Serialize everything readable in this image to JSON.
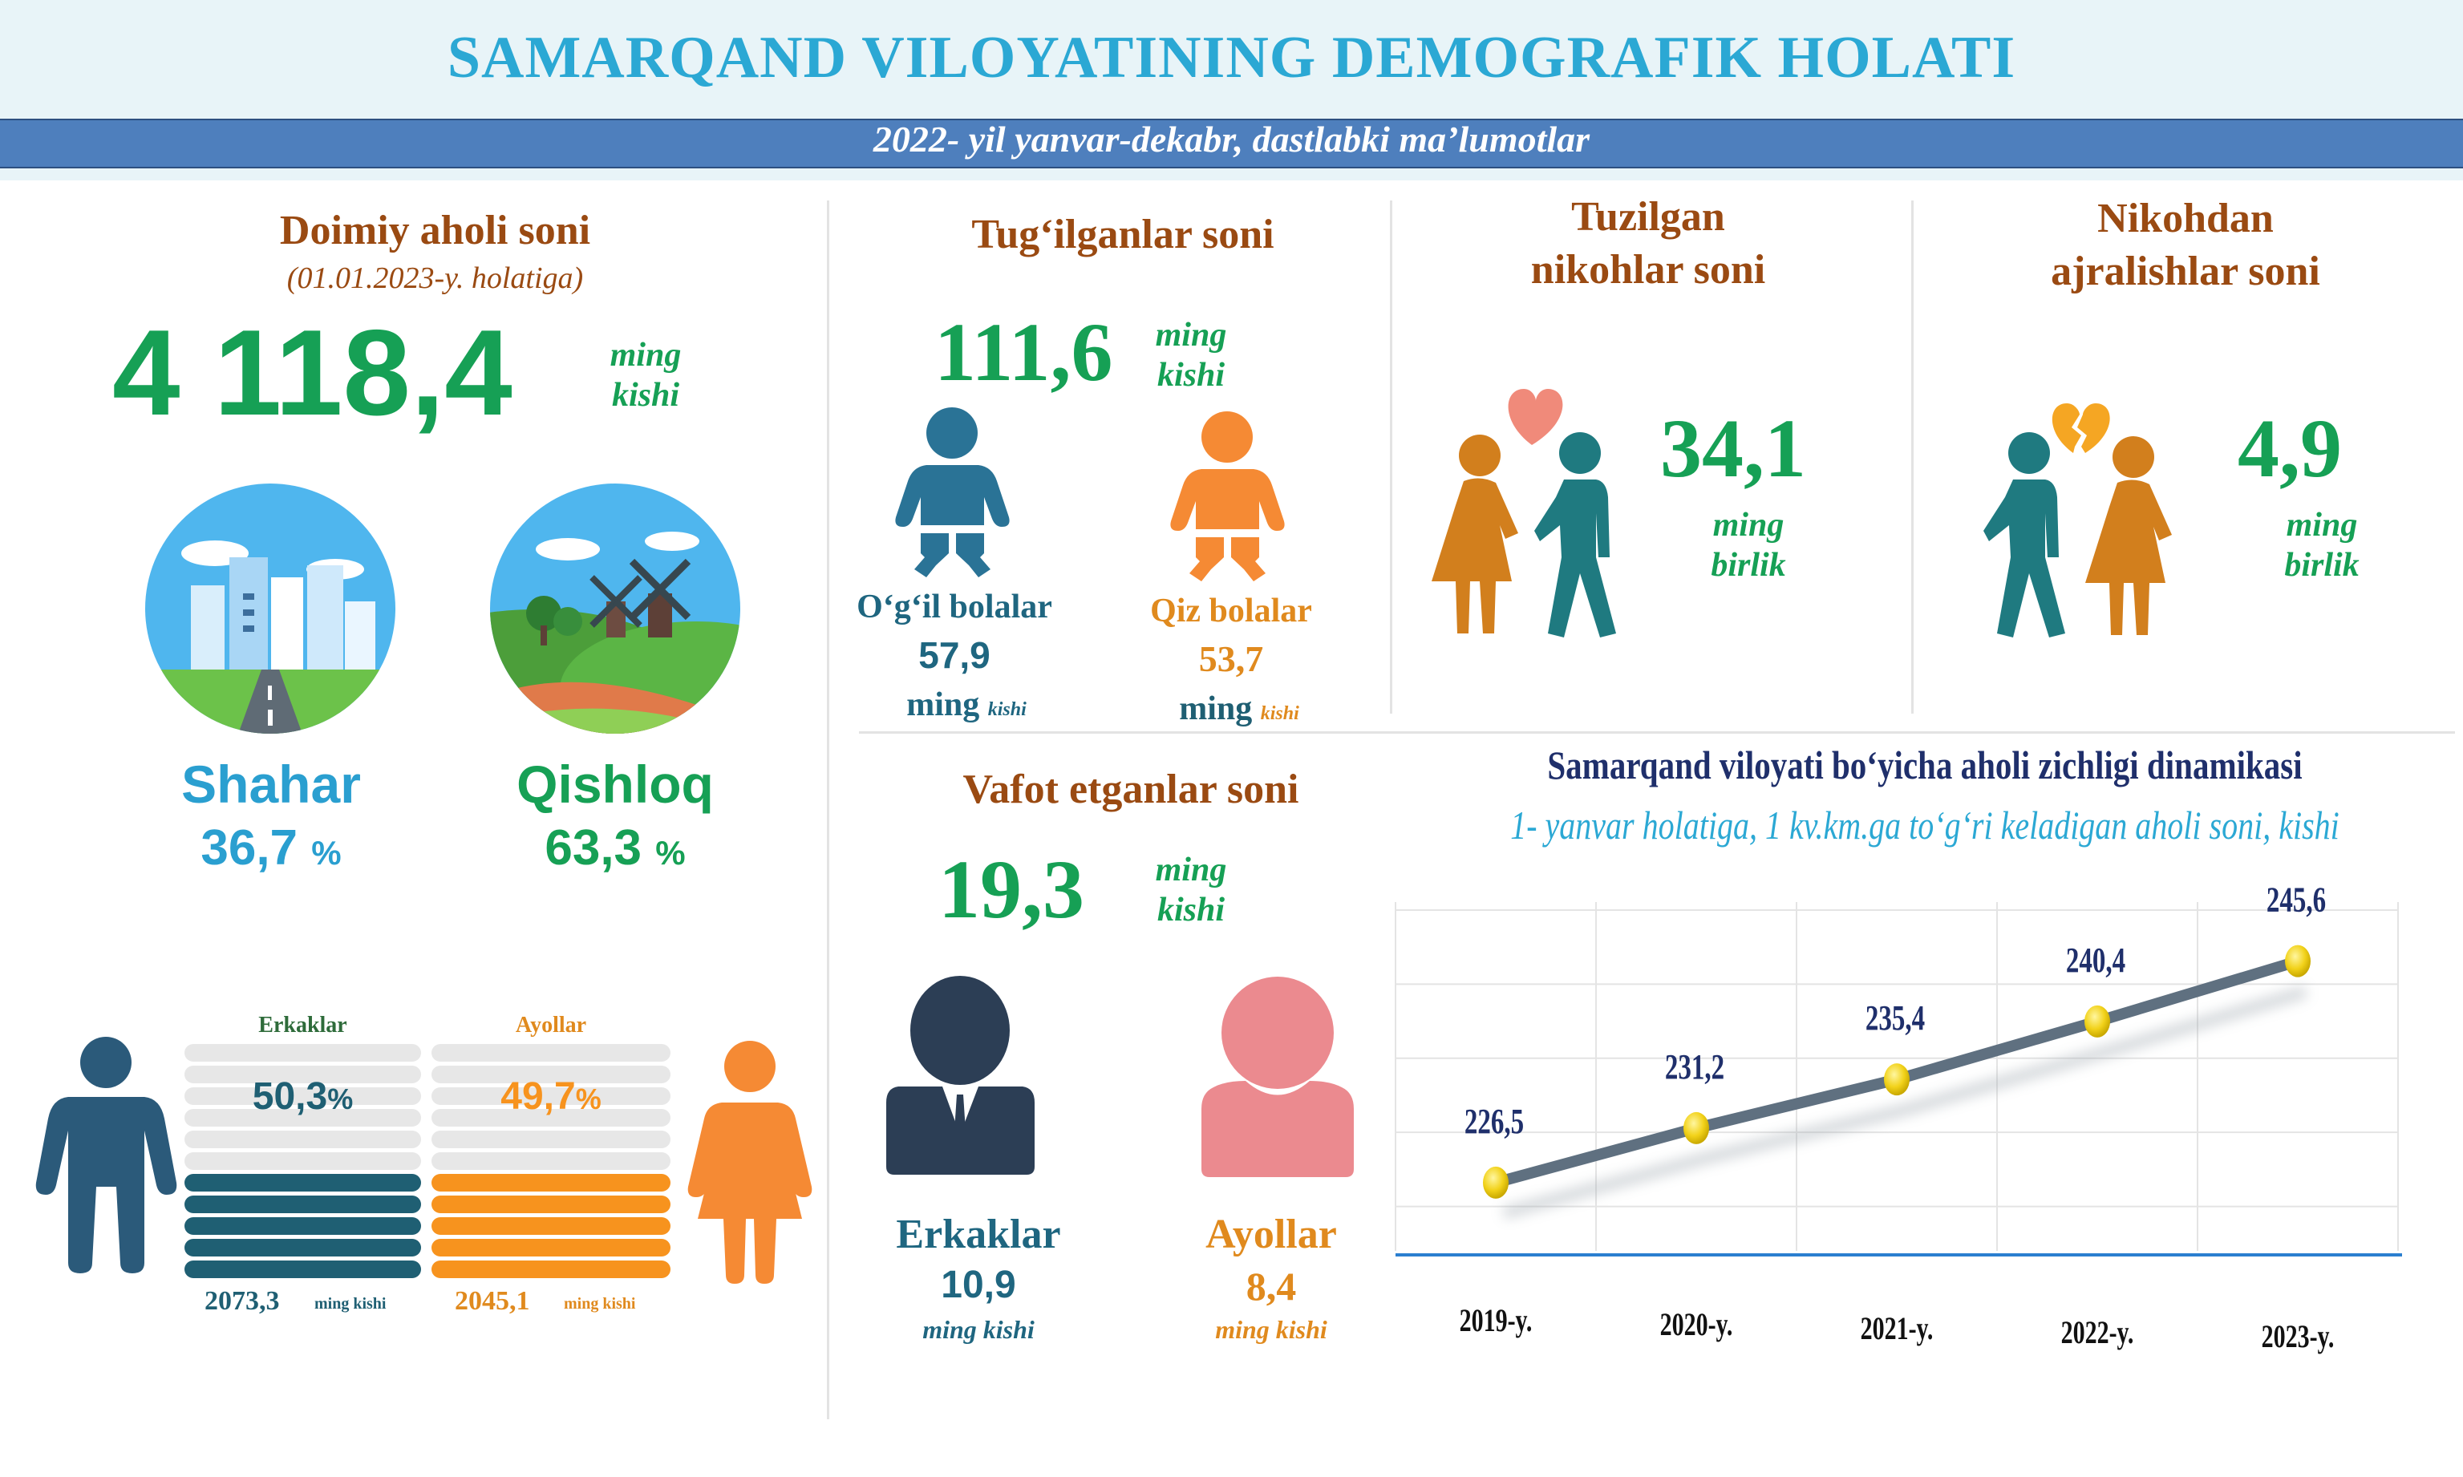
{
  "header": {
    "title": "SAMARQAND VILOYATINING DEMOGRAFIK HOLATI",
    "subtitle": "2022- yil yanvar-dekabr, dastlabki ma’lumotlar"
  },
  "population": {
    "title": "Doimiy aholi soni",
    "date_note": "(01.01.2023-y. holatiga)",
    "value": "4 118,4",
    "unit_line1": "ming",
    "unit_line2": "kishi",
    "urban_label": "Shahar",
    "urban_value": "36,7",
    "urban_pct": "%",
    "rural_label": "Qishloq",
    "rural_value": "63,3",
    "rural_pct": "%",
    "men_label": "Erkaklar",
    "men_share": "50,3",
    "men_pct": "%",
    "men_value": "2073,3",
    "men_unit": "ming kishi",
    "women_label": "Ayollar",
    "women_share": "49,7",
    "women_pct": "%",
    "women_value": "2045,1",
    "women_unit": "ming kishi"
  },
  "births": {
    "title": "Tug‘ilganlar soni",
    "value": "111,6",
    "unit_line1": "ming",
    "unit_line2": "kishi",
    "boys_label": "O‘g‘il bolalar",
    "boys_value": "57,9",
    "boys_unit_main": "ming",
    "boys_unit_small": "kishi",
    "girls_label": "Qiz bolalar",
    "girls_value": "53,7",
    "girls_unit_main": "ming",
    "girls_unit_small": "kishi"
  },
  "marriages": {
    "title_line1": "Tuzilgan",
    "title_line2": "nikohlar soni",
    "value": "34,1",
    "unit_line1": "ming",
    "unit_line2": "birlik"
  },
  "divorces": {
    "title_line1": "Nikohdan",
    "title_line2": "ajralishlar soni",
    "value": "4,9",
    "unit_line1": "ming",
    "unit_line2": "birlik"
  },
  "deaths": {
    "title": "Vafot etganlar soni",
    "value": "19,3",
    "unit_line1": "ming",
    "unit_line2": "kishi",
    "men_label": "Erkaklar",
    "men_value": "10,9",
    "men_unit": "ming kishi",
    "women_label": "Ayollar",
    "women_value": "8,4",
    "women_unit": "ming kishi"
  },
  "colors": {
    "teal": "#1f6680",
    "orange": "#e08a1e",
    "green": "#16a055",
    "title_blue": "#2ba8d4",
    "brown": "#9a4a12",
    "navy": "#1f2f6b"
  },
  "icons": [
    "city-icon",
    "countryside-icon",
    "man-icon",
    "woman-icon",
    "baby-boy-icon",
    "baby-girl-icon",
    "couple-heart-icon",
    "broken-heart-couple-icon",
    "male-bust-icon",
    "female-bust-icon"
  ],
  "chart_data": {
    "type": "line",
    "title": "Samarqand viloyati bo‘yicha aholi zichligi dinamikasi",
    "subtitle": "1- yanvar holatiga, 1 kv.km.ga to‘g‘ri keladigan aholi soni, kishi",
    "categories": [
      "2019-y.",
      "2020-y.",
      "2021-y.",
      "2022-y.",
      "2023-y."
    ],
    "values": [
      226.5,
      231.2,
      235.4,
      240.4,
      245.6
    ],
    "value_labels": [
      "226,5",
      "231,2",
      "235,4",
      "240,4",
      "245,6"
    ],
    "grid": true,
    "legend": "none"
  }
}
